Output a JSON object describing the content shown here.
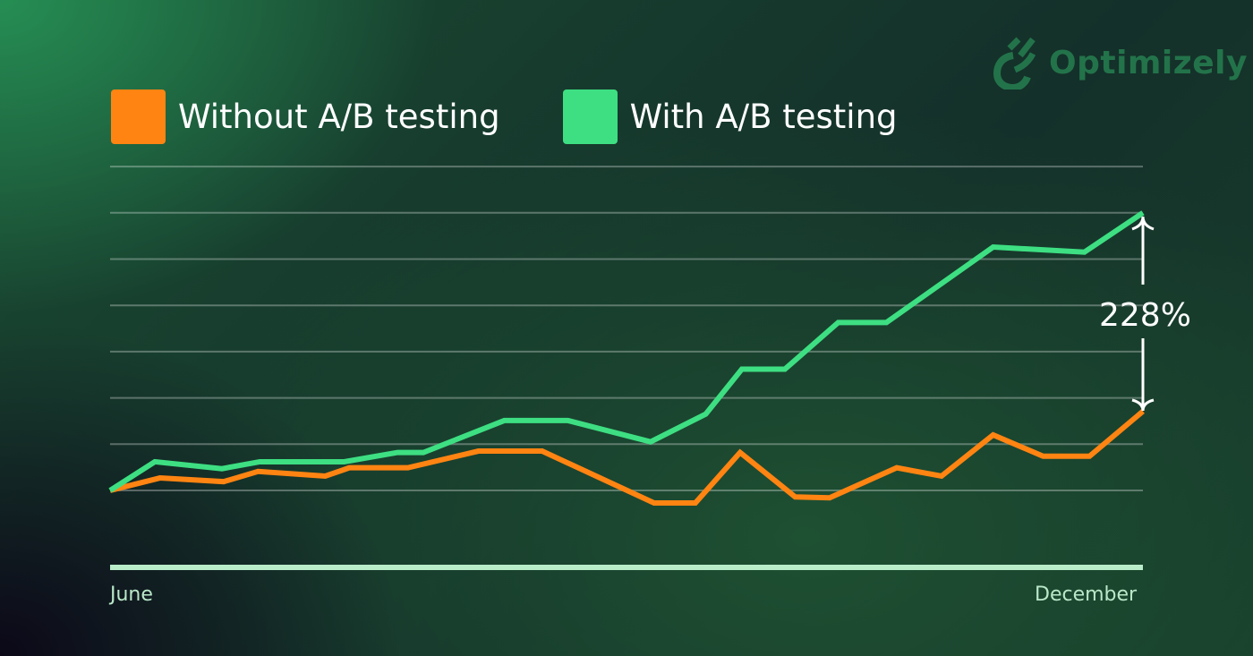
{
  "brand": {
    "name": "Optimizely"
  },
  "chart_data": {
    "type": "line",
    "title": "",
    "xlabel": "",
    "ylabel": "",
    "x_tick_labels": [
      "June",
      "December"
    ],
    "xlim": [
      6,
      12
    ],
    "ylim": [
      -1.66,
      7
    ],
    "grid": true,
    "legend_position": "top-left",
    "annotation": "228%",
    "series": [
      {
        "name": "Without A/B testing",
        "color": "#ff8412",
        "x": [
          6.0,
          6.29,
          6.66,
          6.86,
          7.25,
          7.39,
          7.73,
          8.14,
          8.51,
          9.16,
          9.4,
          9.66,
          9.98,
          10.18,
          10.57,
          10.83,
          11.13,
          11.42,
          11.69,
          12.0
        ],
        "y": [
          0,
          0.27,
          0.19,
          0.41,
          0.31,
          0.49,
          0.49,
          0.85,
          0.85,
          -0.27,
          -0.27,
          0.82,
          -0.14,
          -0.16,
          0.49,
          0.31,
          1.2,
          0.74,
          0.74,
          1.71
        ]
      },
      {
        "name": "With A/B testing",
        "color": "#3ddf82",
        "x": [
          6.0,
          6.26,
          6.65,
          6.87,
          7.36,
          7.67,
          7.82,
          8.29,
          8.66,
          9.14,
          9.46,
          9.67,
          9.92,
          10.23,
          10.51,
          11.13,
          11.66,
          12.0
        ],
        "y": [
          0,
          0.62,
          0.47,
          0.62,
          0.62,
          0.82,
          0.82,
          1.51,
          1.51,
          1.05,
          1.65,
          2.62,
          2.62,
          3.63,
          3.63,
          5.26,
          5.15,
          6.0
        ]
      }
    ]
  }
}
